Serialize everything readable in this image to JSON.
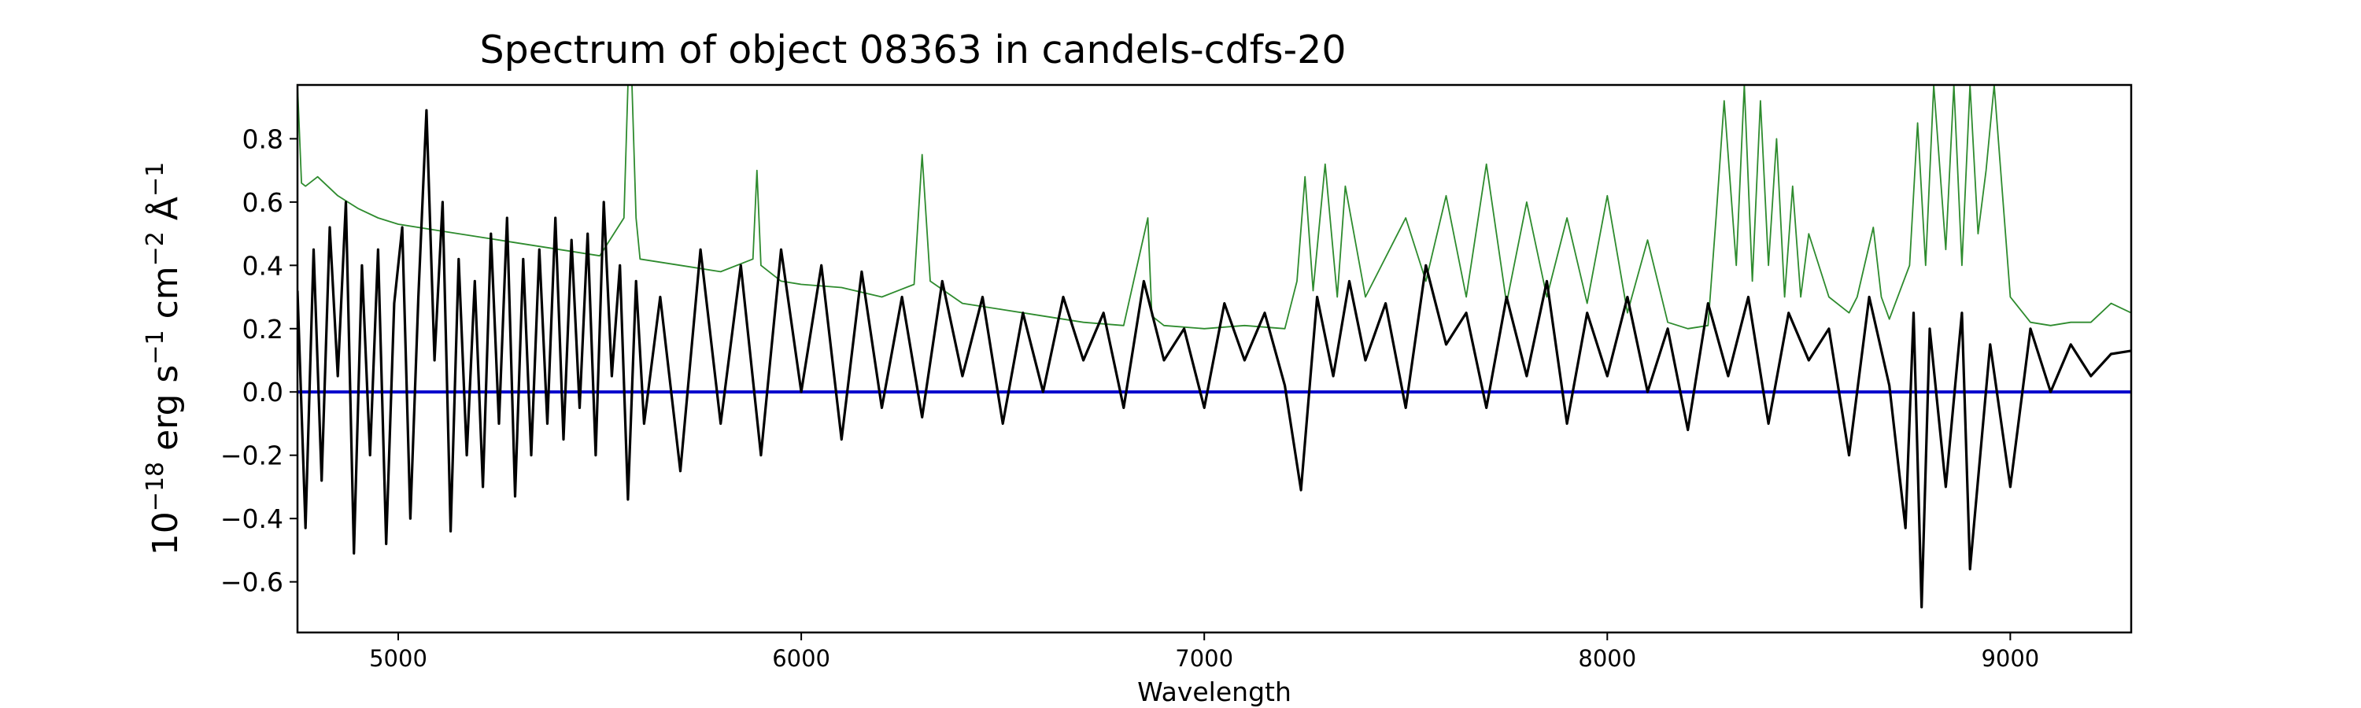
{
  "chart_data": {
    "type": "line",
    "title": "Spectrum of object 08363 in candels-cdfs-20",
    "xlabel": "Wavelength",
    "ylabel": "10^−18 erg s^−1 cm^−2 Å^−1",
    "ylabel_parts": {
      "base1": "10",
      "exp1": "−18",
      "t1": " erg s",
      "exp2": "−1",
      "t2": " cm",
      "exp3": "−2",
      "t3": " Å",
      "exp4": "−1"
    },
    "xlim": [
      4750,
      9300
    ],
    "ylim": [
      -0.76,
      0.97
    ],
    "xticks": [
      5000,
      6000,
      7000,
      8000,
      9000
    ],
    "xtick_labels": [
      "5000",
      "6000",
      "7000",
      "8000",
      "9000"
    ],
    "yticks": [
      0.8,
      0.6,
      0.4,
      0.2,
      0.0,
      -0.2,
      -0.4,
      -0.6
    ],
    "ytick_labels": [
      "0.8",
      "0.6",
      "0.4",
      "0.2",
      "0.0",
      "−0.2",
      "−0.4",
      "−0.6"
    ],
    "grid": false,
    "series": [
      {
        "role": "noise",
        "color": "#2e8b2e",
        "x": [
          4750,
          4760,
          4770,
          4800,
          4850,
          4900,
          4950,
          5000,
          5100,
          5200,
          5300,
          5400,
          5500,
          5560,
          5570,
          5580,
          5590,
          5600,
          5700,
          5800,
          5880,
          5890,
          5900,
          5950,
          6000,
          6100,
          6200,
          6280,
          6300,
          6320,
          6400,
          6500,
          6600,
          6700,
          6800,
          6860,
          6870,
          6900,
          7000,
          7100,
          7200,
          7230,
          7250,
          7270,
          7300,
          7330,
          7350,
          7400,
          7500,
          7550,
          7600,
          7650,
          7700,
          7750,
          7800,
          7850,
          7900,
          7950,
          8000,
          8050,
          8100,
          8150,
          8200,
          8250,
          8270,
          8290,
          8320,
          8340,
          8360,
          8380,
          8400,
          8420,
          8440,
          8460,
          8480,
          8500,
          8550,
          8600,
          8620,
          8660,
          8680,
          8700,
          8750,
          8770,
          8790,
          8810,
          8840,
          8860,
          8880,
          8900,
          8920,
          8940,
          8960,
          9000,
          9050,
          9100,
          9150,
          9200,
          9250,
          9300
        ],
        "y": [
          0.97,
          0.66,
          0.65,
          0.68,
          0.62,
          0.58,
          0.55,
          0.53,
          0.51,
          0.49,
          0.47,
          0.45,
          0.43,
          0.55,
          0.97,
          0.97,
          0.55,
          0.42,
          0.4,
          0.38,
          0.42,
          0.7,
          0.4,
          0.35,
          0.34,
          0.33,
          0.3,
          0.34,
          0.75,
          0.35,
          0.28,
          0.26,
          0.24,
          0.22,
          0.21,
          0.55,
          0.24,
          0.21,
          0.2,
          0.21,
          0.2,
          0.35,
          0.68,
          0.32,
          0.72,
          0.3,
          0.65,
          0.3,
          0.55,
          0.35,
          0.62,
          0.3,
          0.72,
          0.28,
          0.6,
          0.3,
          0.55,
          0.28,
          0.62,
          0.25,
          0.48,
          0.22,
          0.2,
          0.21,
          0.55,
          0.92,
          0.4,
          0.97,
          0.35,
          0.92,
          0.4,
          0.8,
          0.3,
          0.65,
          0.3,
          0.5,
          0.3,
          0.25,
          0.3,
          0.52,
          0.3,
          0.23,
          0.4,
          0.85,
          0.4,
          0.97,
          0.45,
          0.97,
          0.4,
          0.97,
          0.5,
          0.7,
          0.97,
          0.3,
          0.22,
          0.21,
          0.22,
          0.22,
          0.28,
          0.25
        ]
      },
      {
        "role": "flux",
        "color": "#000000",
        "x": [
          4750,
          4770,
          4790,
          4810,
          4830,
          4850,
          4870,
          4890,
          4910,
          4930,
          4950,
          4970,
          4990,
          5010,
          5030,
          5050,
          5070,
          5090,
          5110,
          5130,
          5150,
          5170,
          5190,
          5210,
          5230,
          5250,
          5270,
          5290,
          5310,
          5330,
          5350,
          5370,
          5390,
          5410,
          5430,
          5450,
          5470,
          5490,
          5510,
          5530,
          5550,
          5570,
          5590,
          5610,
          5650,
          5700,
          5750,
          5800,
          5850,
          5900,
          5950,
          6000,
          6050,
          6100,
          6150,
          6200,
          6250,
          6300,
          6350,
          6400,
          6450,
          6500,
          6550,
          6600,
          6650,
          6700,
          6750,
          6800,
          6850,
          6900,
          6950,
          7000,
          7050,
          7100,
          7150,
          7200,
          7240,
          7280,
          7320,
          7360,
          7400,
          7450,
          7500,
          7550,
          7600,
          7650,
          7700,
          7750,
          7800,
          7850,
          7900,
          7950,
          8000,
          8050,
          8100,
          8150,
          8200,
          8250,
          8300,
          8350,
          8400,
          8450,
          8500,
          8550,
          8600,
          8650,
          8700,
          8740,
          8760,
          8780,
          8800,
          8840,
          8880,
          8900,
          8950,
          9000,
          9050,
          9100,
          9150,
          9200,
          9250,
          9300
        ],
        "y": [
          0.32,
          -0.43,
          0.45,
          -0.28,
          0.52,
          0.05,
          0.6,
          -0.51,
          0.4,
          -0.2,
          0.45,
          -0.48,
          0.28,
          0.52,
          -0.4,
          0.3,
          0.89,
          0.1,
          0.6,
          -0.44,
          0.42,
          -0.2,
          0.35,
          -0.3,
          0.5,
          -0.1,
          0.55,
          -0.33,
          0.42,
          -0.2,
          0.45,
          -0.1,
          0.55,
          -0.15,
          0.48,
          -0.05,
          0.5,
          -0.2,
          0.6,
          0.05,
          0.4,
          -0.34,
          0.35,
          -0.1,
          0.3,
          -0.25,
          0.45,
          -0.1,
          0.4,
          -0.2,
          0.45,
          0.0,
          0.4,
          -0.15,
          0.38,
          -0.05,
          0.3,
          -0.08,
          0.35,
          0.05,
          0.3,
          -0.1,
          0.25,
          0.0,
          0.3,
          0.1,
          0.25,
          -0.05,
          0.35,
          0.1,
          0.2,
          -0.05,
          0.28,
          0.1,
          0.25,
          0.02,
          -0.31,
          0.3,
          0.05,
          0.35,
          0.1,
          0.28,
          -0.05,
          0.4,
          0.15,
          0.25,
          -0.05,
          0.3,
          0.05,
          0.35,
          -0.1,
          0.25,
          0.05,
          0.3,
          0.0,
          0.2,
          -0.12,
          0.28,
          0.05,
          0.3,
          -0.1,
          0.25,
          0.1,
          0.2,
          -0.2,
          0.3,
          0.02,
          -0.43,
          0.25,
          -0.68,
          0.2,
          -0.3,
          0.25,
          -0.56,
          0.15,
          -0.3,
          0.2,
          0.0,
          0.15,
          0.05,
          0.12,
          0.13
        ]
      },
      {
        "role": "zero",
        "color": "#0000cc",
        "x": [
          4750,
          9300
        ],
        "y": [
          0.0,
          0.0
        ]
      }
    ]
  }
}
